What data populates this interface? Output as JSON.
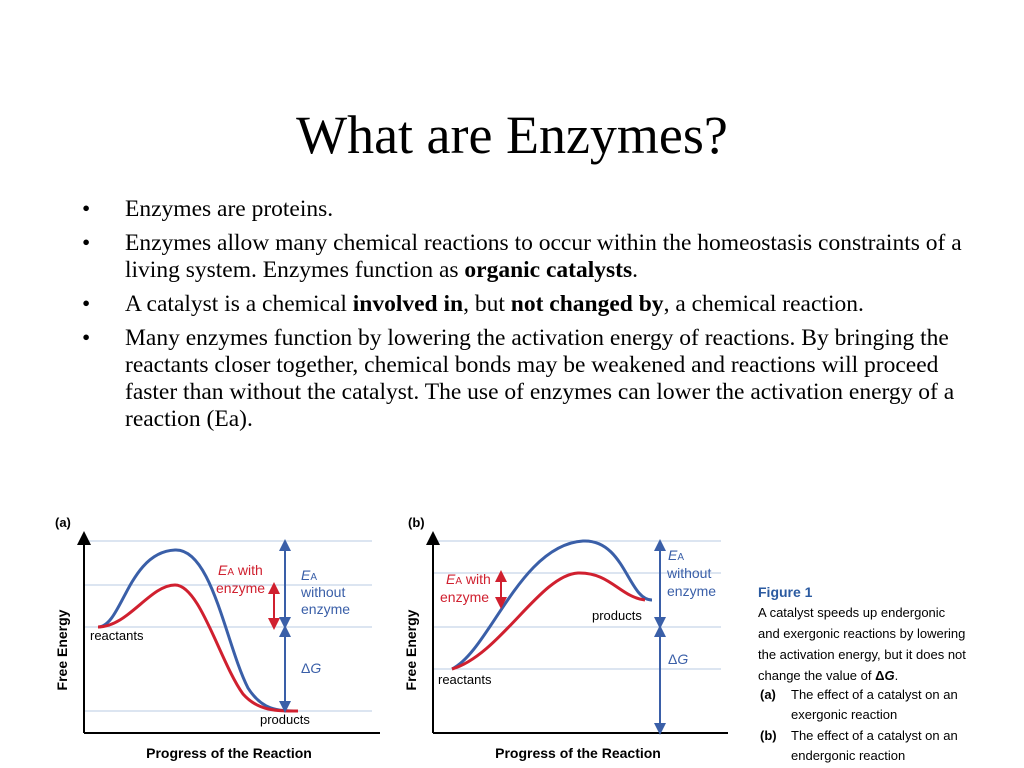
{
  "slide": {
    "title": "What are Enzymes?",
    "bullet_char": "•",
    "bullets": [
      {
        "parts": [
          "Enzymes are proteins."
        ]
      },
      {
        "parts": [
          "Enzymes allow many chemical reactions to occur within the homeostasis constraints of a living system. Enzymes function as ",
          "organic catalysts",
          "."
        ]
      },
      {
        "parts": [
          "A catalyst is a chemical ",
          "involved in",
          ", but ",
          "not changed by",
          ", a chemical reaction."
        ]
      },
      {
        "parts": [
          "Many enzymes function by lowering the activation energy of reactions. By bringing the reactants closer together, chemical bonds may be weakened and reactions will proceed faster than without the catalyst. The use of enzymes can lower the activation energy of a reaction (Ea)."
        ]
      }
    ]
  },
  "figure": {
    "panel_a": {
      "label": "(a)",
      "y_axis": "Free Energy",
      "x_axis": "Progress of the Reaction",
      "reactants": "reactants",
      "products": "products",
      "ea_with_E": "E",
      "ea_with_sub": "A",
      "ea_with_rest": " with",
      "ea_with_line2": "enzyme",
      "ea_without_E": "E",
      "ea_without_sub": "A",
      "ea_without_line2": "without",
      "ea_without_line3": "enzyme",
      "delta": "Δ",
      "G": "G"
    },
    "panel_b": {
      "label": "(b)",
      "y_axis": "Free Energy",
      "x_axis": "Progress of the Reaction",
      "reactants": "reactants",
      "products": "products",
      "ea_with_E": "E",
      "ea_with_sub": "A",
      "ea_with_rest": " with",
      "ea_with_line2": "enzyme",
      "ea_without_E": "E",
      "ea_without_sub": "A",
      "ea_without_line2": "without",
      "ea_without_line3": "enzyme",
      "delta": "Δ",
      "G": "G"
    },
    "caption": {
      "title": "Figure 1",
      "lines": [
        "A catalyst speeds up endergonic",
        "and exergonic reactions by lowering",
        "the activation energy, but it does not",
        "change the value of "
      ],
      "dg_delta": "Δ",
      "dg_G": "G",
      "dg_period": ".",
      "item_a_label": "(a)",
      "item_a_lines": [
        "The effect of a catalyst on an",
        "exergonic reaction"
      ],
      "item_b_label": "(b)",
      "item_b_lines": [
        "The effect of a catalyst on an",
        "endergonic reaction"
      ]
    }
  },
  "colors": {
    "without_enzyme": "#3a5fa8",
    "with_enzyme": "#d0202f",
    "guide": "#b8cbe3",
    "caption_title": "#2b5aa0"
  }
}
